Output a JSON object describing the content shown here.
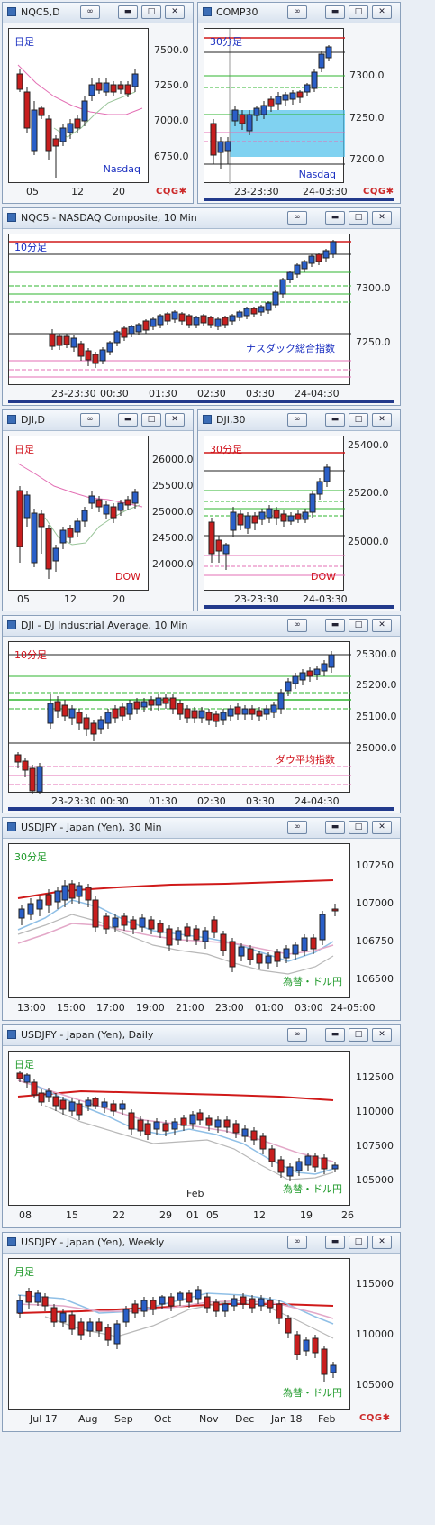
{
  "brand": "CQG",
  "windows": [
    {
      "id": "nqc5-daily",
      "title": "NQC5,D",
      "tag": "日足",
      "tag_color": "#1a2fc0",
      "watermark": "Nasdaq",
      "watermark_color": "#1a2fc0",
      "y_labels": [
        "7500.0",
        "7250.0",
        "7000.0",
        "6750.0"
      ],
      "x_labels": [
        "05",
        "12",
        "20"
      ]
    },
    {
      "id": "comp30",
      "title": "COMP30",
      "tag": "30分足",
      "tag_color": "#1a2fc0",
      "watermark": "Nasdaq",
      "watermark_color": "#1a2fc0",
      "y_labels": [
        "7300.0",
        "7250.0",
        "7200.0"
      ],
      "x_labels": [
        "23-23:30",
        "24-03:30"
      ]
    },
    {
      "id": "nqc5-10min",
      "title": "NQC5 - NASDAQ Composite, 10 Min",
      "tag": "10分足",
      "tag_color": "#1a2fc0",
      "watermark": "ナスダック総合指数",
      "watermark_color": "#1a2fc0",
      "y_labels": [
        "7300.0",
        "7250.0"
      ],
      "x_labels": [
        "23-23:30",
        "00:30",
        "01:30",
        "02:30",
        "03:30",
        "24-04:30"
      ]
    },
    {
      "id": "dji-daily",
      "title": "DJI,D",
      "tag": "日足",
      "tag_color": "#d0101a",
      "watermark": "DOW",
      "watermark_color": "#d0101a",
      "y_labels": [
        "26000.0",
        "25500.0",
        "25000.0",
        "24500.0",
        "24000.0"
      ],
      "x_labels": [
        "05",
        "12",
        "20"
      ]
    },
    {
      "id": "dji30",
      "title": "DJI,30",
      "tag": "30分足",
      "tag_color": "#d0101a",
      "watermark": "DOW",
      "watermark_color": "#d0101a",
      "y_labels": [
        "25400.0",
        "25200.0",
        "25000.0"
      ],
      "x_labels": [
        "23-23:30",
        "24-03:30"
      ]
    },
    {
      "id": "dji-10min",
      "title": "DJI - DJ Industrial Average, 10 Min",
      "tag": "10分足",
      "tag_color": "#d0101a",
      "watermark": "ダウ平均指数",
      "watermark_color": "#d0101a",
      "y_labels": [
        "25300.0",
        "25200.0",
        "25100.0",
        "25000.0"
      ],
      "x_labels": [
        "23-23:30",
        "00:30",
        "01:30",
        "02:30",
        "03:30",
        "24-04:30"
      ]
    },
    {
      "id": "usdjpy-30min",
      "title": "USDJPY - Japan (Yen), 30 Min",
      "tag": "30分足",
      "tag_color": "#1f9a2a",
      "watermark": "為替・ドル円",
      "watermark_color": "#1f9a2a",
      "y_labels": [
        "107250",
        "107000",
        "106750",
        "106500"
      ],
      "x_labels": [
        "13:00",
        "15:00",
        "17:00",
        "19:00",
        "21:00",
        "23:00",
        "01:00",
        "03:00",
        "24-05:00"
      ]
    },
    {
      "id": "usdjpy-daily",
      "title": "USDJPY - Japan (Yen), Daily",
      "tag": "日足",
      "tag_color": "#1f9a2a",
      "watermark": "為替・ドル円",
      "watermark_color": "#1f9a2a",
      "y_labels": [
        "112500",
        "110000",
        "107500",
        "105000"
      ],
      "x_labels": [
        "08",
        "15",
        "22",
        "29",
        "01",
        "05",
        "12",
        "19",
        "26"
      ],
      "x_top_label": "Feb"
    },
    {
      "id": "usdjpy-weekly",
      "title": "USDJPY - Japan (Yen), Weekly",
      "tag": "月足",
      "tag_color": "#1f9a2a",
      "watermark": "為替・ドル円",
      "watermark_color": "#1f9a2a",
      "y_labels": [
        "115000",
        "110000",
        "105000"
      ],
      "x_labels": [
        "Jul 17",
        "Aug",
        "Sep",
        "Oct",
        "Nov",
        "Dec",
        "Jan 18",
        "Feb"
      ]
    }
  ],
  "colors": {
    "up_candle": "#2a5fc8",
    "down_candle": "#c81e1e",
    "fib_green": "#2fb52f",
    "resistance_red": "#d01a1a",
    "pink_line": "#e36fb4",
    "selection_fill": "#56c3ec",
    "nav_bar": "#223a8c"
  }
}
